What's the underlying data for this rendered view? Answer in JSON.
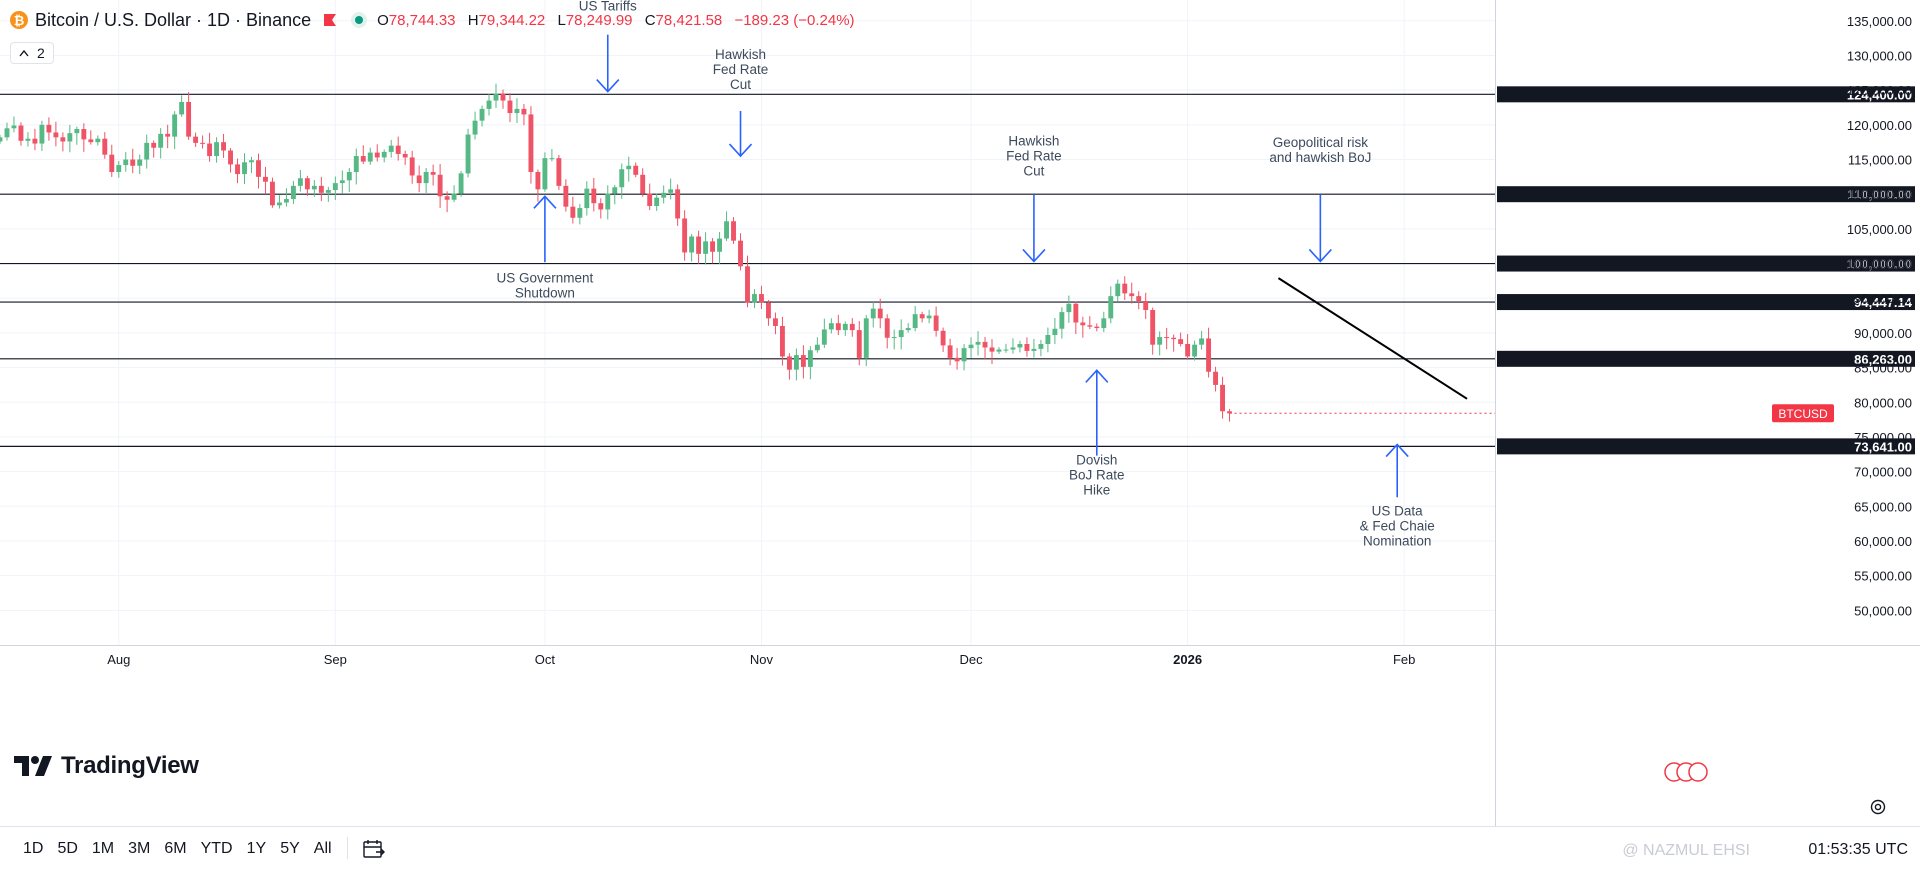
{
  "header": {
    "coin_glyph": "₿",
    "symbol_title": "Bitcoin / U.S. Dollar · 1D · Binance",
    "ohlc": [
      {
        "key": "O",
        "value": "78,744.33"
      },
      {
        "key": "H",
        "value": "79,344.22"
      },
      {
        "key": "L",
        "value": "78,249.99"
      },
      {
        "key": "C",
        "value": "78,421.58"
      }
    ],
    "change": "−189.23 (−0.24%)",
    "indicator_count": "2"
  },
  "branding": {
    "logo_text": "TradingView"
  },
  "periods": [
    "1D",
    "5D",
    "1M",
    "3M",
    "6M",
    "YTD",
    "1Y",
    "5Y",
    "All"
  ],
  "clock": "01:53:35 UTC",
  "watermark": "@ NAZMUL EHSI",
  "colors": {
    "up": "#26a69a",
    "down": "#f23645",
    "up_fill": "#56b985",
    "down_fill": "#ef5366",
    "arrow": "#2962ff",
    "grid": "#f0f3fa",
    "label_bg": "#131722"
  },
  "chart_data": {
    "type": "candlestick",
    "title": "Bitcoin / U.S. Dollar · 1D · Binance",
    "ylim": [
      45000,
      138000
    ],
    "y_ticks": [
      50000,
      55000,
      60000,
      65000,
      70000,
      75000,
      80000,
      85000,
      90000,
      95000,
      100000,
      105000,
      110000,
      115000,
      120000,
      125000,
      130000,
      135000
    ],
    "y_tick_labels": [
      "50,000.00",
      "55,000.00",
      "60,000.00",
      "65,000.00",
      "70,000.00",
      "75,000.00",
      "80,000.00",
      "85,000.00",
      "90,000.00",
      "95,000.00",
      "100,000.00",
      "105,000.00",
      "110,000.00",
      "115,000.00",
      "120,000.00",
      "125,000.00",
      "130,000.00",
      "135,000.00"
    ],
    "x_range": [
      "2025-07-15",
      "2026-02-14"
    ],
    "x_ticks": [
      {
        "date": "2025-08-01",
        "label": "Aug",
        "bold": false
      },
      {
        "date": "2025-09-01",
        "label": "Sep",
        "bold": false
      },
      {
        "date": "2025-10-01",
        "label": "Oct",
        "bold": false
      },
      {
        "date": "2025-11-01",
        "label": "Nov",
        "bold": false
      },
      {
        "date": "2025-12-01",
        "label": "Dec",
        "bold": false
      },
      {
        "date": "2026-01-01",
        "label": "2026",
        "bold": true
      },
      {
        "date": "2026-02-01",
        "label": "Feb",
        "bold": false
      }
    ],
    "closes": [
      [
        118200,
        "2025-07-15"
      ],
      [
        119500
      ],
      [
        119900
      ],
      [
        117700
      ],
      [
        118000
      ],
      [
        117300
      ],
      [
        120000
      ],
      [
        118900
      ],
      [
        118200
      ],
      [
        117600
      ],
      [
        118800
      ],
      [
        119400
      ],
      [
        117900
      ],
      [
        117500
      ],
      [
        118000
      ],
      [
        115700
      ],
      [
        113200
      ],
      [
        114200
      ],
      [
        115000
      ],
      [
        114100
      ],
      [
        115000
      ],
      [
        117400
      ],
      [
        116700
      ],
      [
        118700
      ],
      [
        118300
      ],
      [
        121500
      ],
      [
        123300
      ],
      [
        118300
      ],
      [
        117400
      ],
      [
        117300
      ],
      [
        115500
      ],
      [
        117500
      ],
      [
        116300
      ],
      [
        114300
      ],
      [
        112900
      ],
      [
        114600
      ],
      [
        114900
      ],
      [
        112500
      ],
      [
        111800
      ],
      [
        108400
      ],
      [
        108800
      ],
      [
        109300
      ],
      [
        111200
      ],
      [
        112300
      ],
      [
        110700
      ],
      [
        111200
      ],
      [
        110200
      ],
      [
        110600
      ],
      [
        111600
      ],
      [
        112000
      ],
      [
        113200
      ],
      [
        115500
      ],
      [
        114700
      ],
      [
        116000
      ],
      [
        115300
      ],
      [
        116100
      ],
      [
        117000
      ],
      [
        115800
      ],
      [
        115300
      ],
      [
        112700
      ],
      [
        111600
      ],
      [
        113200
      ],
      [
        112800
      ],
      [
        109700
      ],
      [
        109200
      ],
      [
        110100
      ],
      [
        113000
      ],
      [
        118600
      ],
      [
        120600
      ],
      [
        122300
      ],
      [
        123500
      ],
      [
        124500
      ],
      [
        123500
      ],
      [
        121700
      ],
      [
        122300
      ],
      [
        121500
      ],
      [
        113200
      ],
      [
        110700
      ],
      [
        115200
      ],
      [
        115200
      ],
      [
        111200
      ],
      [
        108200
      ],
      [
        106600
      ],
      [
        108000
      ],
      [
        110800
      ],
      [
        108700
      ],
      [
        107800
      ],
      [
        110100
      ],
      [
        111000
      ],
      [
        113600
      ],
      [
        114100
      ],
      [
        112800
      ],
      [
        110100
      ],
      [
        108300
      ],
      [
        109500
      ],
      [
        110200
      ],
      [
        110700
      ],
      [
        106500
      ],
      [
        101600
      ],
      [
        103900
      ],
      [
        101400
      ],
      [
        103200
      ],
      [
        101700
      ],
      [
        103600
      ],
      [
        106100
      ],
      [
        103300
      ],
      [
        99600
      ],
      [
        94400
      ],
      [
        95600
      ],
      [
        94400
      ],
      [
        92100
      ],
      [
        91000
      ],
      [
        86600
      ],
      [
        84700
      ],
      [
        86800
      ],
      [
        85100
      ],
      [
        87500
      ],
      [
        88300
      ],
      [
        90500
      ],
      [
        91400
      ],
      [
        90400
      ],
      [
        91300
      ],
      [
        90400
      ],
      [
        86400
      ],
      [
        92100
      ],
      [
        93500
      ],
      [
        92100
      ],
      [
        89300
      ],
      [
        89400
      ],
      [
        90400
      ],
      [
        90700
      ],
      [
        92700
      ],
      [
        92100
      ],
      [
        92500
      ],
      [
        90300
      ],
      [
        88200
      ],
      [
        86400
      ],
      [
        85900
      ],
      [
        87800
      ],
      [
        88300
      ],
      [
        88700
      ],
      [
        87900
      ],
      [
        87300
      ],
      [
        87600
      ],
      [
        87600
      ],
      [
        87900
      ],
      [
        88400
      ],
      [
        87400
      ],
      [
        87700
      ],
      [
        88400
      ],
      [
        89700
      ],
      [
        90600
      ],
      [
        93000
      ],
      [
        94200
      ],
      [
        91500
      ],
      [
        91100
      ],
      [
        90900
      ],
      [
        90700
      ],
      [
        92100
      ],
      [
        95300
      ],
      [
        97100
      ],
      [
        95700
      ],
      [
        95300
      ],
      [
        94600
      ],
      [
        93300
      ],
      [
        88300
      ],
      [
        89400
      ],
      [
        89300
      ],
      [
        89100
      ],
      [
        88400
      ],
      [
        86600
      ],
      [
        88300
      ],
      [
        89200
      ],
      [
        84400
      ],
      [
        82500
      ],
      [
        78700
      ],
      [
        78400
      ]
    ],
    "levels": [
      {
        "value": 124400,
        "label": "124,400.00"
      },
      {
        "value": 110000,
        "label": "110,000.00"
      },
      {
        "value": 100000,
        "label": "100,000.00"
      },
      {
        "value": 94447.14,
        "label": "94,447.14"
      },
      {
        "value": 86263,
        "label": "86,263.00"
      },
      {
        "value": 73641,
        "label": "73,641.00"
      }
    ],
    "last_price": {
      "value": 78421.58,
      "label": "BTCUSD"
    },
    "trendline": [
      {
        "date": "2026-01-14",
        "value": 97900
      },
      {
        "date": "2026-02-10",
        "value": 80500
      }
    ],
    "annotations": [
      {
        "lines": [
          "US Tariffs"
        ],
        "date": "2025-10-10",
        "direction": "down",
        "arrow_from": 133000,
        "arrow_to": 124800,
        "text_at": 136500
      },
      {
        "lines": [
          "Hawkish",
          "Fed Rate",
          "Cut"
        ],
        "date": "2025-10-29",
        "direction": "down",
        "arrow_from": 122000,
        "arrow_to": 115500,
        "text_at": 129500
      },
      {
        "lines": [
          "US Government",
          "Shutdown"
        ],
        "date": "2025-10-01",
        "direction": "up",
        "arrow_from": 100200,
        "arrow_to": 109700,
        "text_at": 97300
      },
      {
        "lines": [
          "Hawkish",
          "Fed Rate",
          "Cut"
        ],
        "date": "2025-12-10",
        "direction": "down",
        "arrow_from": 110000,
        "arrow_to": 100300,
        "text_at": 117000
      },
      {
        "lines": [
          "Geopolitical risk",
          "and hawkish BoJ"
        ],
        "date": "2026-01-20",
        "direction": "down",
        "arrow_from": 110000,
        "arrow_to": 100300,
        "text_at": 116800
      },
      {
        "lines": [
          "Dovish",
          "BoJ Rate",
          "Hike"
        ],
        "date": "2025-12-19",
        "direction": "up",
        "arrow_from": 72300,
        "arrow_to": 84600,
        "text_at": 71000
      },
      {
        "lines": [
          "US Data",
          "& Fed Chaie",
          "Nomination"
        ],
        "date": "2026-01-31",
        "direction": "up",
        "arrow_from": 66300,
        "arrow_to": 73900,
        "text_at": 63700
      }
    ]
  }
}
